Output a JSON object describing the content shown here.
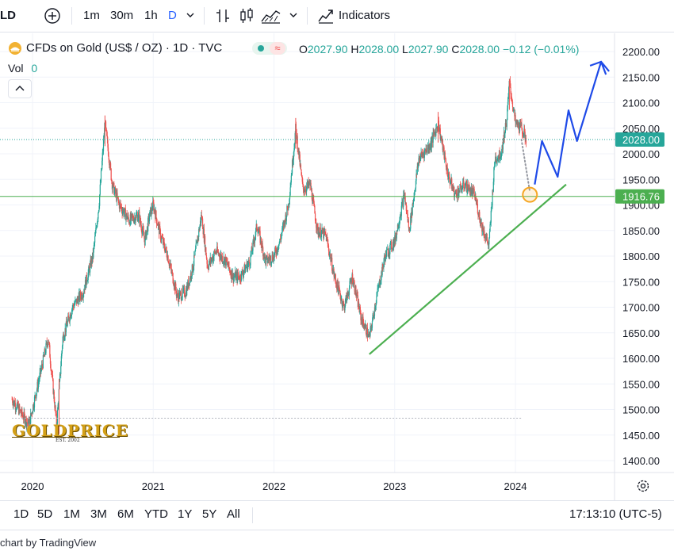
{
  "toolbar": {
    "symbol_fragment": "LD",
    "intervals": [
      "1m",
      "30m",
      "1h",
      "D"
    ],
    "indicators_label": "Indicators"
  },
  "legend": {
    "title": "CFDs on Gold (US$ / OZ) · 1D · TVC",
    "open_label": "O",
    "open": "2027.90",
    "high_label": "H",
    "high": "2028.00",
    "low_label": "L",
    "low": "2027.90",
    "close_label": "C",
    "close": "2028.00",
    "change": "−0.12 (−0.01%)",
    "vol_label": "Vol",
    "vol": "0"
  },
  "watermark": {
    "brand": "GOLDPRICE",
    "tagline": "EST. 2002"
  },
  "bottom": {
    "ranges": [
      "1D",
      "5D",
      "1M",
      "3M",
      "6M",
      "YTD",
      "1Y",
      "5Y",
      "All"
    ],
    "clock": "17:13:10 (UTC-5)"
  },
  "footer": {
    "credit": "chart by TradingView"
  },
  "colors": {
    "up": "#26a69a",
    "down": "#ef5350",
    "trend": "#4caf50",
    "projection": "#1e4ae8",
    "target": "#f5a623",
    "price_badge": "#26a69a",
    "level_badge": "#4caf50"
  },
  "chart_data": {
    "type": "candlestick",
    "title": "CFDs on Gold (US$ / OZ) · 1D · TVC",
    "y_axis_ticks": [
      1400,
      1450,
      1500,
      1550,
      1600,
      1650,
      1700,
      1750,
      1800,
      1850,
      1900,
      1950,
      2000,
      2050,
      2100,
      2150,
      2200
    ],
    "x_axis_ticks": [
      "2020",
      "2021",
      "2022",
      "2023",
      "2024"
    ],
    "ylim": [
      1365,
      2225
    ],
    "xlim": [
      2019.83,
      2024.97
    ],
    "current_price": 2028.0,
    "horizontal_level": 1916.76,
    "support_level_dotted": 1483,
    "price_path": [
      [
        2019.83,
        1520
      ],
      [
        2019.9,
        1495
      ],
      [
        2019.97,
        1470
      ],
      [
        2020.05,
        1555
      ],
      [
        2020.13,
        1640
      ],
      [
        2020.2,
        1470
      ],
      [
        2020.25,
        1640
      ],
      [
        2020.33,
        1700
      ],
      [
        2020.42,
        1730
      ],
      [
        2020.5,
        1800
      ],
      [
        2020.55,
        1900
      ],
      [
        2020.6,
        2060
      ],
      [
        2020.66,
        1940
      ],
      [
        2020.72,
        1900
      ],
      [
        2020.8,
        1870
      ],
      [
        2020.88,
        1880
      ],
      [
        2020.93,
        1830
      ],
      [
        2020.97,
        1880
      ],
      [
        2021.0,
        1900
      ],
      [
        2021.06,
        1840
      ],
      [
        2021.12,
        1800
      ],
      [
        2021.2,
        1720
      ],
      [
        2021.27,
        1730
      ],
      [
        2021.33,
        1780
      ],
      [
        2021.4,
        1880
      ],
      [
        2021.45,
        1780
      ],
      [
        2021.52,
        1810
      ],
      [
        2021.6,
        1790
      ],
      [
        2021.66,
        1760
      ],
      [
        2021.72,
        1760
      ],
      [
        2021.8,
        1790
      ],
      [
        2021.86,
        1860
      ],
      [
        2021.93,
        1790
      ],
      [
        2022.0,
        1800
      ],
      [
        2022.05,
        1830
      ],
      [
        2022.12,
        1900
      ],
      [
        2022.18,
        2050
      ],
      [
        2022.24,
        1930
      ],
      [
        2022.3,
        1940
      ],
      [
        2022.36,
        1850
      ],
      [
        2022.43,
        1840
      ],
      [
        2022.5,
        1760
      ],
      [
        2022.58,
        1700
      ],
      [
        2022.65,
        1760
      ],
      [
        2022.72,
        1680
      ],
      [
        2022.79,
        1640
      ],
      [
        2022.85,
        1720
      ],
      [
        2022.92,
        1800
      ],
      [
        2023.0,
        1830
      ],
      [
        2023.08,
        1920
      ],
      [
        2023.12,
        1850
      ],
      [
        2023.2,
        1990
      ],
      [
        2023.3,
        2020
      ],
      [
        2023.36,
        2060
      ],
      [
        2023.44,
        1960
      ],
      [
        2023.5,
        1920
      ],
      [
        2023.58,
        1940
      ],
      [
        2023.66,
        1920
      ],
      [
        2023.72,
        1860
      ],
      [
        2023.78,
        1820
      ],
      [
        2023.83,
        1990
      ],
      [
        2023.88,
        2000
      ],
      [
        2023.93,
        2070
      ],
      [
        2023.95,
        2140
      ],
      [
        2024.0,
        2060
      ],
      [
        2024.05,
        2050
      ],
      [
        2024.09,
        2028
      ]
    ],
    "annotations": {
      "trendline": [
        [
          2022.79,
          1608
        ],
        [
          2024.42,
          1940
        ]
      ],
      "dotted_projection": [
        [
          2024.05,
          2028
        ],
        [
          2024.12,
          1925
        ]
      ],
      "target_circle": [
        2024.12,
        1920
      ],
      "projected_wave": [
        [
          2024.16,
          1940
        ],
        [
          2024.22,
          2025
        ],
        [
          2024.35,
          1955
        ],
        [
          2024.44,
          2085
        ],
        [
          2024.51,
          2025
        ],
        [
          2024.71,
          2180
        ],
        [
          2024.75,
          2155
        ]
      ]
    }
  }
}
